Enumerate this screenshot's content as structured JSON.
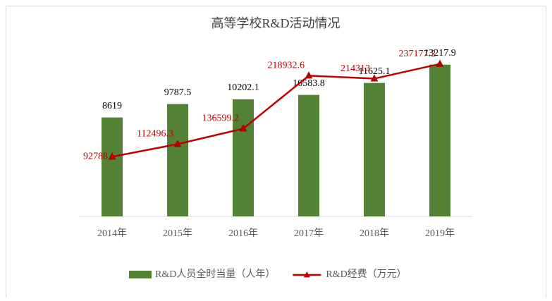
{
  "chart_data": {
    "type": "bar_line",
    "title": "高等学校R&D活动情况",
    "categories": [
      "2014年",
      "2015年",
      "2016年",
      "2017年",
      "2018年",
      "2019年"
    ],
    "series": [
      {
        "name": "R&D人员全时当量（人年）",
        "type": "bar",
        "color": "#548235",
        "values": [
          8619,
          9787.5,
          10202.1,
          10583.8,
          11625.1,
          13217.9
        ]
      },
      {
        "name": "R&D经费（万元）",
        "type": "line",
        "axis": "y2",
        "color": "#c00000",
        "values": [
          92788,
          112496.3,
          136599.2,
          218932.6,
          214313,
          237177.2
        ]
      }
    ],
    "ylim": [
      0,
      14000
    ],
    "y2lim": [
      0,
      250000
    ],
    "legend": "bottom"
  }
}
